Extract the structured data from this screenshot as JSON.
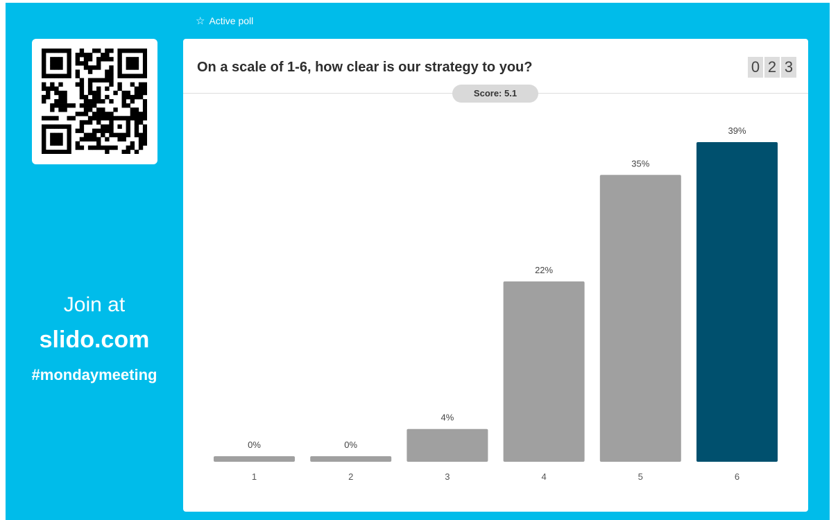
{
  "header": {
    "active_poll_label": "Active poll",
    "star_icon": "star-outline-icon"
  },
  "join": {
    "qr_icon": "qr-code-icon",
    "join_label": "Join at",
    "site": "slido.com",
    "event_code": "#mondaymeeting"
  },
  "poll": {
    "question": "On a scale of 1-6, how clear is our strategy to you?",
    "participant_digits": [
      "0",
      "2",
      "3"
    ],
    "score_label": "Score: 5.1"
  },
  "colors": {
    "background": "#00bcea",
    "bar_default": "#a0a0a0",
    "bar_highlight": "#00506e"
  },
  "chart_data": {
    "type": "bar",
    "categories": [
      "1",
      "2",
      "3",
      "4",
      "5",
      "6"
    ],
    "values": [
      0,
      0,
      4,
      22,
      35,
      39
    ],
    "value_labels": [
      "0%",
      "0%",
      "4%",
      "22%",
      "35%",
      "39%"
    ],
    "highlight_index": 5,
    "ylim": [
      0,
      39
    ],
    "grid": false
  }
}
